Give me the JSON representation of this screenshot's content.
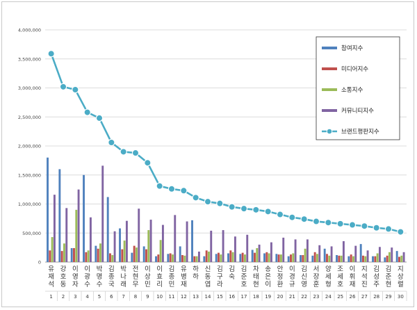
{
  "chart_data": {
    "type": "bar",
    "title": "",
    "xlabel": "",
    "ylabel": "",
    "ylim": [
      0,
      4000000
    ],
    "yticks": [
      "0",
      "500,000",
      "1,000,000",
      "1,500,000",
      "2,000,000",
      "2,500,000",
      "3,000,000",
      "3,500,000",
      "4,000,000"
    ],
    "grid": true,
    "legend_position": "top-right",
    "categories": [
      "유재석",
      "강호동",
      "이영자",
      "이광수",
      "박명수",
      "김종국",
      "박나래",
      "전현무",
      "이상민",
      "이효리",
      "김종민",
      "유병재",
      "하하",
      "신동엽",
      "김구라",
      "김숙",
      "김준호",
      "차태현",
      "송은이",
      "안정환",
      "이경규",
      "김신영",
      "서장훈",
      "양세형",
      "조세호",
      "이휘재",
      "지석진",
      "김성주",
      "김준현",
      "지상렬"
    ],
    "numbers": [
      "1",
      "2",
      "3",
      "4",
      "5",
      "6",
      "7",
      "8",
      "9",
      "10",
      "11",
      "12",
      "13",
      "14",
      "15",
      "16",
      "17",
      "18",
      "19",
      "20",
      "21",
      "22",
      "23",
      "24",
      "25",
      "26",
      "27",
      "28",
      "29",
      "30"
    ],
    "series": [
      {
        "name": "참여지수",
        "type": "bar",
        "color": "#4f81bd",
        "values": [
          1800000,
          1600000,
          240000,
          1500000,
          280000,
          1120000,
          580000,
          160000,
          270000,
          100000,
          140000,
          270000,
          720000,
          100000,
          140000,
          150000,
          140000,
          210000,
          150000,
          140000,
          100000,
          120000,
          110000,
          230000,
          120000,
          100000,
          310000,
          100000,
          80000,
          190000
        ]
      },
      {
        "name": "미디어지수",
        "type": "bar",
        "color": "#c0504d",
        "values": [
          200000,
          190000,
          240000,
          170000,
          230000,
          150000,
          220000,
          280000,
          220000,
          130000,
          150000,
          120000,
          100000,
          200000,
          160000,
          200000,
          160000,
          160000,
          170000,
          130000,
          130000,
          120000,
          170000,
          140000,
          110000,
          130000,
          110000,
          100000,
          110000,
          90000
        ]
      },
      {
        "name": "소통지수",
        "type": "bar",
        "color": "#9bbb59",
        "values": [
          430000,
          320000,
          900000,
          200000,
          320000,
          120000,
          370000,
          250000,
          550000,
          380000,
          130000,
          110000,
          100000,
          180000,
          130000,
          170000,
          130000,
          240000,
          150000,
          130000,
          150000,
          230000,
          140000,
          110000,
          110000,
          100000,
          100000,
          150000,
          170000,
          110000
        ]
      },
      {
        "name": "커뮤니티지수",
        "type": "bar",
        "color": "#8064a2",
        "values": [
          1160000,
          930000,
          1250000,
          770000,
          1660000,
          530000,
          710000,
          920000,
          730000,
          640000,
          810000,
          700000,
          180000,
          540000,
          550000,
          440000,
          470000,
          300000,
          340000,
          420000,
          390000,
          390000,
          290000,
          270000,
          360000,
          280000,
          200000,
          260000,
          250000,
          170000
        ]
      },
      {
        "name": "브랜드평판지수",
        "type": "line",
        "color": "#4bacc6",
        "values": [
          3590000,
          3020000,
          2970000,
          2580000,
          2480000,
          2060000,
          1900000,
          1880000,
          1710000,
          1310000,
          1260000,
          1230000,
          1110000,
          1040000,
          1010000,
          950000,
          920000,
          900000,
          870000,
          820000,
          770000,
          740000,
          700000,
          680000,
          660000,
          640000,
          620000,
          590000,
          570000,
          520000
        ]
      }
    ]
  }
}
